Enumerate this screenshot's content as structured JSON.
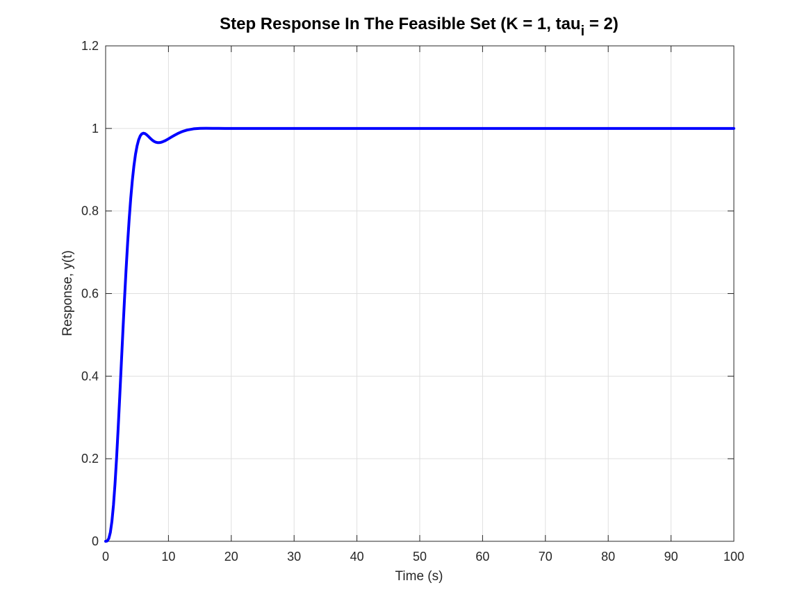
{
  "chart_data": {
    "type": "line",
    "title_main": "Step Response In The Feasible Set (K = 1, tau",
    "title_sub": "i",
    "title_tail": " = 2)",
    "xlabel": "Time (s)",
    "ylabel": "Response, y(t)",
    "xlim": [
      0,
      100
    ],
    "ylim": [
      0,
      1.2
    ],
    "xticks": [
      0,
      10,
      20,
      30,
      40,
      50,
      60,
      70,
      80,
      90,
      100
    ],
    "xtick_labels": [
      "0",
      "10",
      "20",
      "30",
      "40",
      "50",
      "60",
      "70",
      "80",
      "90",
      "100"
    ],
    "yticks": [
      0,
      0.2,
      0.4,
      0.6,
      0.8,
      1.0,
      1.2
    ],
    "ytick_labels": [
      "0",
      "0.2",
      "0.4",
      "0.6",
      "0.8",
      "1",
      "1.2"
    ],
    "grid": true,
    "series": [
      {
        "color": "#0000ff",
        "x": [
          0,
          0.25,
          0.5,
          0.75,
          1,
          1.25,
          1.5,
          1.75,
          2,
          2.25,
          2.5,
          2.75,
          3,
          3.25,
          3.5,
          3.75,
          4,
          4.25,
          4.5,
          4.75,
          5,
          5.25,
          5.5,
          5.75,
          6,
          6.25,
          6.5,
          6.75,
          7,
          7.25,
          7.5,
          7.75,
          8,
          8.25,
          8.5,
          8.75,
          9,
          9.5,
          10,
          10.5,
          11,
          11.5,
          12,
          12.5,
          13,
          14,
          15,
          16,
          17,
          18,
          19,
          20,
          22,
          25,
          30,
          40,
          50,
          60,
          70,
          80,
          90,
          100
        ],
        "y": [
          0,
          0.0008,
          0.0066,
          0.0215,
          0.0483,
          0.0881,
          0.1405,
          0.2037,
          0.2751,
          0.3517,
          0.4308,
          0.5095,
          0.5855,
          0.6569,
          0.7222,
          0.7806,
          0.8313,
          0.8741,
          0.9091,
          0.9368,
          0.9575,
          0.9722,
          0.9817,
          0.9868,
          0.9885,
          0.9876,
          0.985,
          0.9815,
          0.9777,
          0.974,
          0.9708,
          0.9683,
          0.9666,
          0.9657,
          0.9656,
          0.9661,
          0.9672,
          0.9705,
          0.9748,
          0.9794,
          0.9838,
          0.9878,
          0.9912,
          0.994,
          0.9962,
          0.999,
          1.0001,
          1.0003,
          1.0002,
          1.0001,
          1.0,
          1.0,
          1.0,
          1.0,
          1.0,
          1.0,
          1.0,
          1.0,
          1.0,
          1.0,
          1.0,
          1.0
        ],
        "line_width": 4
      }
    ]
  }
}
